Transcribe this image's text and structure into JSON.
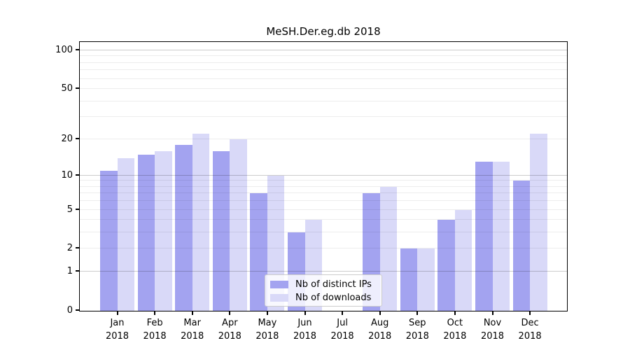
{
  "chart_data": {
    "type": "bar",
    "title": "MeSH.Der.eg.db 2018",
    "categories": [
      "Jan",
      "Feb",
      "Mar",
      "Apr",
      "May",
      "Jun",
      "Jul",
      "Aug",
      "Sep",
      "Oct",
      "Nov",
      "Dec"
    ],
    "category_year": "2018",
    "series": [
      {
        "name": "Nb of distinct IPs",
        "color": "#a3a3f0",
        "values": [
          11,
          15,
          18,
          16,
          7,
          3,
          0,
          7,
          2,
          4,
          13,
          9
        ]
      },
      {
        "name": "Nb of downloads",
        "color": "#d9d9f8",
        "values": [
          14,
          16,
          22,
          20,
          10,
          4,
          0,
          8,
          2,
          5,
          13,
          22
        ]
      }
    ],
    "xlabel": "",
    "ylabel": "",
    "ylim": [
      0,
      100
    ],
    "yscale": "log1p",
    "yticks": [
      0,
      1,
      2,
      5,
      10,
      20,
      50,
      100
    ],
    "grid_major": [
      1,
      10,
      100
    ],
    "grid_minor": [
      2,
      3,
      4,
      5,
      6,
      7,
      8,
      9,
      20,
      30,
      40,
      50,
      60,
      70,
      80,
      90
    ],
    "grid": "horizontal",
    "legend_position": "lower center-left"
  }
}
